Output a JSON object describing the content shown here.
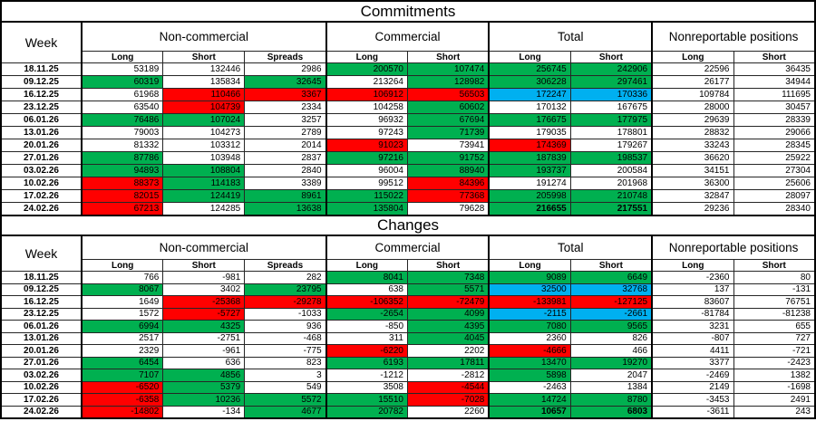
{
  "colors": {
    "g": "#00B050",
    "r": "#FF0000",
    "b": "#00B0F0",
    "w": "#FFFFFF"
  },
  "tables": [
    {
      "title": "Commitments",
      "week_header": "Week",
      "groups": [
        {
          "label": "Non-commercial"
        },
        {
          "label": "Commercial"
        },
        {
          "label": "Total"
        },
        {
          "label": "Nonreportable positions"
        }
      ],
      "subheaders": [
        "Long",
        "Short",
        "Spreads",
        "Long",
        "Short",
        "Long",
        "Short",
        "Long",
        "Short"
      ],
      "rows": [
        {
          "week": "18.11.25",
          "cells": [
            [
              "53189",
              "w"
            ],
            [
              "132446",
              "w"
            ],
            [
              "2986",
              "w"
            ],
            [
              "200570",
              "g"
            ],
            [
              "107474",
              "g"
            ],
            [
              "256745",
              "g"
            ],
            [
              "242906",
              "g"
            ],
            [
              "22596",
              "w"
            ],
            [
              "36435",
              "w"
            ]
          ]
        },
        {
          "week": "09.12.25",
          "cells": [
            [
              "60319",
              "g"
            ],
            [
              "135834",
              "w"
            ],
            [
              "32645",
              "g"
            ],
            [
              "213264",
              "w"
            ],
            [
              "128982",
              "g"
            ],
            [
              "306228",
              "g"
            ],
            [
              "297461",
              "g"
            ],
            [
              "26177",
              "w"
            ],
            [
              "34944",
              "w"
            ]
          ]
        },
        {
          "week": "16.12.25",
          "cells": [
            [
              "61968",
              "w"
            ],
            [
              "110466",
              "r"
            ],
            [
              "3367",
              "r"
            ],
            [
              "106912",
              "r"
            ],
            [
              "56503",
              "r"
            ],
            [
              "172247",
              "b"
            ],
            [
              "170336",
              "b"
            ],
            [
              "109784",
              "w"
            ],
            [
              "111695",
              "w"
            ]
          ]
        },
        {
          "week": "23.12.25",
          "cells": [
            [
              "63540",
              "w"
            ],
            [
              "104739",
              "r"
            ],
            [
              "2334",
              "w"
            ],
            [
              "104258",
              "w"
            ],
            [
              "60602",
              "g"
            ],
            [
              "170132",
              "w"
            ],
            [
              "167675",
              "w"
            ],
            [
              "28000",
              "w"
            ],
            [
              "30457",
              "w"
            ]
          ]
        },
        {
          "week": "06.01.26",
          "cells": [
            [
              "76486",
              "g"
            ],
            [
              "107024",
              "g"
            ],
            [
              "3257",
              "w"
            ],
            [
              "96932",
              "w"
            ],
            [
              "67694",
              "g"
            ],
            [
              "176675",
              "g"
            ],
            [
              "177975",
              "g"
            ],
            [
              "29639",
              "w"
            ],
            [
              "28339",
              "w"
            ]
          ]
        },
        {
          "week": "13.01.26",
          "cells": [
            [
              "79003",
              "w"
            ],
            [
              "104273",
              "w"
            ],
            [
              "2789",
              "w"
            ],
            [
              "97243",
              "w"
            ],
            [
              "71739",
              "g"
            ],
            [
              "179035",
              "w"
            ],
            [
              "178801",
              "w"
            ],
            [
              "28832",
              "w"
            ],
            [
              "29066",
              "w"
            ]
          ]
        },
        {
          "week": "20.01.26",
          "cells": [
            [
              "81332",
              "w"
            ],
            [
              "103312",
              "w"
            ],
            [
              "2014",
              "w"
            ],
            [
              "91023",
              "r"
            ],
            [
              "73941",
              "w"
            ],
            [
              "174369",
              "r"
            ],
            [
              "179267",
              "w"
            ],
            [
              "33243",
              "w"
            ],
            [
              "28345",
              "w"
            ]
          ]
        },
        {
          "week": "27.01.26",
          "cells": [
            [
              "87786",
              "g"
            ],
            [
              "103948",
              "w"
            ],
            [
              "2837",
              "w"
            ],
            [
              "97216",
              "g"
            ],
            [
              "91752",
              "g"
            ],
            [
              "187839",
              "g"
            ],
            [
              "198537",
              "g"
            ],
            [
              "36620",
              "w"
            ],
            [
              "25922",
              "w"
            ]
          ]
        },
        {
          "week": "03.02.26",
          "cells": [
            [
              "94893",
              "g"
            ],
            [
              "108804",
              "g"
            ],
            [
              "2840",
              "w"
            ],
            [
              "96004",
              "w"
            ],
            [
              "88940",
              "g"
            ],
            [
              "193737",
              "g"
            ],
            [
              "200584",
              "w"
            ],
            [
              "34151",
              "w"
            ],
            [
              "27304",
              "w"
            ]
          ]
        },
        {
          "week": "10.02.26",
          "cells": [
            [
              "88373",
              "r"
            ],
            [
              "114183",
              "g"
            ],
            [
              "3389",
              "w"
            ],
            [
              "99512",
              "w"
            ],
            [
              "84396",
              "r"
            ],
            [
              "191274",
              "w"
            ],
            [
              "201968",
              "w"
            ],
            [
              "36300",
              "w"
            ],
            [
              "25606",
              "w"
            ]
          ]
        },
        {
          "week": "17.02.26",
          "cells": [
            [
              "82015",
              "r"
            ],
            [
              "124419",
              "g"
            ],
            [
              "8961",
              "g"
            ],
            [
              "115022",
              "g"
            ],
            [
              "77368",
              "r"
            ],
            [
              "205998",
              "g"
            ],
            [
              "210748",
              "g"
            ],
            [
              "32847",
              "w"
            ],
            [
              "28097",
              "w"
            ]
          ]
        },
        {
          "week": "24.02.26",
          "cells": [
            [
              "67213",
              "r"
            ],
            [
              "124285",
              "w"
            ],
            [
              "13638",
              "g"
            ],
            [
              "135804",
              "g"
            ],
            [
              "79628",
              "w"
            ],
            [
              "216655",
              "g",
              "bold"
            ],
            [
              "217551",
              "g",
              "bold"
            ],
            [
              "29236",
              "w"
            ],
            [
              "28340",
              "w"
            ]
          ]
        }
      ]
    },
    {
      "title": "Changes",
      "week_header": "Week",
      "groups": [
        {
          "label": "Non-commercial"
        },
        {
          "label": "Commercial"
        },
        {
          "label": "Total"
        },
        {
          "label": "Nonreportable positions"
        }
      ],
      "subheaders": [
        "Long",
        "Short",
        "Spreads",
        "Long",
        "Short",
        "Long",
        "Short",
        "Long",
        "Short"
      ],
      "rows": [
        {
          "week": "18.11.25",
          "cells": [
            [
              "766",
              "w"
            ],
            [
              "-981",
              "w"
            ],
            [
              "282",
              "w"
            ],
            [
              "8041",
              "g"
            ],
            [
              "7348",
              "g"
            ],
            [
              "9089",
              "g"
            ],
            [
              "6649",
              "g"
            ],
            [
              "-2360",
              "w"
            ],
            [
              "80",
              "w"
            ]
          ]
        },
        {
          "week": "09.12.25",
          "cells": [
            [
              "8067",
              "g"
            ],
            [
              "3402",
              "w"
            ],
            [
              "23795",
              "g"
            ],
            [
              "638",
              "w"
            ],
            [
              "5571",
              "g"
            ],
            [
              "32500",
              "b"
            ],
            [
              "32768",
              "b"
            ],
            [
              "137",
              "w"
            ],
            [
              "-131",
              "w"
            ]
          ]
        },
        {
          "week": "16.12.25",
          "cells": [
            [
              "1649",
              "w"
            ],
            [
              "-25368",
              "r"
            ],
            [
              "-29278",
              "r"
            ],
            [
              "-106352",
              "r"
            ],
            [
              "-72479",
              "r"
            ],
            [
              "-133981",
              "r"
            ],
            [
              "-127125",
              "r"
            ],
            [
              "83607",
              "w"
            ],
            [
              "76751",
              "w"
            ]
          ]
        },
        {
          "week": "23.12.25",
          "cells": [
            [
              "1572",
              "w"
            ],
            [
              "-5727",
              "r"
            ],
            [
              "-1033",
              "w"
            ],
            [
              "-2654",
              "g"
            ],
            [
              "4099",
              "g"
            ],
            [
              "-2115",
              "b"
            ],
            [
              "-2661",
              "b"
            ],
            [
              "-81784",
              "w"
            ],
            [
              "-81238",
              "w"
            ]
          ]
        },
        {
          "week": "06.01.26",
          "cells": [
            [
              "6994",
              "g"
            ],
            [
              "4325",
              "g"
            ],
            [
              "936",
              "w"
            ],
            [
              "-850",
              "w"
            ],
            [
              "4395",
              "g"
            ],
            [
              "7080",
              "g"
            ],
            [
              "9565",
              "g"
            ],
            [
              "3231",
              "w"
            ],
            [
              "655",
              "w"
            ]
          ]
        },
        {
          "week": "13.01.26",
          "cells": [
            [
              "2517",
              "w"
            ],
            [
              "-2751",
              "w"
            ],
            [
              "-468",
              "w"
            ],
            [
              "311",
              "w"
            ],
            [
              "4045",
              "g"
            ],
            [
              "2360",
              "w"
            ],
            [
              "826",
              "w"
            ],
            [
              "-807",
              "w"
            ],
            [
              "727",
              "w"
            ]
          ]
        },
        {
          "week": "20.01.26",
          "cells": [
            [
              "2329",
              "w"
            ],
            [
              "-961",
              "w"
            ],
            [
              "-775",
              "w"
            ],
            [
              "-6220",
              "r"
            ],
            [
              "2202",
              "w"
            ],
            [
              "-4666",
              "r"
            ],
            [
              "466",
              "w"
            ],
            [
              "4411",
              "w"
            ],
            [
              "-721",
              "w"
            ]
          ]
        },
        {
          "week": "27.01.26",
          "cells": [
            [
              "6454",
              "g"
            ],
            [
              "636",
              "w"
            ],
            [
              "823",
              "w"
            ],
            [
              "6193",
              "g"
            ],
            [
              "17811",
              "g"
            ],
            [
              "13470",
              "g"
            ],
            [
              "19270",
              "g"
            ],
            [
              "3377",
              "w"
            ],
            [
              "-2423",
              "w"
            ]
          ]
        },
        {
          "week": "03.02.26",
          "cells": [
            [
              "7107",
              "g"
            ],
            [
              "4856",
              "g"
            ],
            [
              "3",
              "w"
            ],
            [
              "-1212",
              "w"
            ],
            [
              "-2812",
              "w"
            ],
            [
              "5898",
              "g"
            ],
            [
              "2047",
              "w"
            ],
            [
              "-2469",
              "w"
            ],
            [
              "1382",
              "w"
            ]
          ]
        },
        {
          "week": "10.02.26",
          "cells": [
            [
              "-6520",
              "r"
            ],
            [
              "5379",
              "g"
            ],
            [
              "549",
              "w"
            ],
            [
              "3508",
              "w"
            ],
            [
              "-4544",
              "r"
            ],
            [
              "-2463",
              "w"
            ],
            [
              "1384",
              "w"
            ],
            [
              "2149",
              "w"
            ],
            [
              "-1698",
              "w"
            ]
          ]
        },
        {
          "week": "17.02.26",
          "cells": [
            [
              "-6358",
              "r"
            ],
            [
              "10236",
              "g"
            ],
            [
              "5572",
              "g"
            ],
            [
              "15510",
              "g"
            ],
            [
              "-7028",
              "r"
            ],
            [
              "14724",
              "g"
            ],
            [
              "8780",
              "g"
            ],
            [
              "-3453",
              "w"
            ],
            [
              "2491",
              "w"
            ]
          ]
        },
        {
          "week": "24.02.26",
          "cells": [
            [
              "-14802",
              "r"
            ],
            [
              "-134",
              "w"
            ],
            [
              "4677",
              "g"
            ],
            [
              "20782",
              "g"
            ],
            [
              "2260",
              "w"
            ],
            [
              "10657",
              "g",
              "bold"
            ],
            [
              "6803",
              "g",
              "bold"
            ],
            [
              "-3611",
              "w"
            ],
            [
              "243",
              "w"
            ]
          ]
        }
      ]
    }
  ]
}
